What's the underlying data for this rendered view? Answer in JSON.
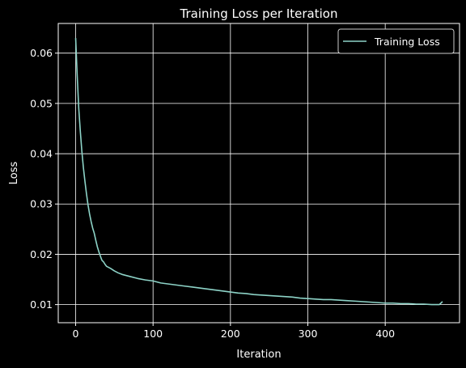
{
  "chart_data": {
    "type": "line",
    "title": "Training Loss per Iteration",
    "xlabel": "Iteration",
    "ylabel": "Loss",
    "xlim": [
      -22.5,
      496
    ],
    "ylim": [
      0.0064,
      0.0659
    ],
    "xticks": [
      0,
      100,
      200,
      300,
      400
    ],
    "xtick_labels": [
      "0",
      "100",
      "200",
      "300",
      "400"
    ],
    "yticks": [
      0.01,
      0.02,
      0.03,
      0.04,
      0.05,
      0.06
    ],
    "ytick_labels": [
      "0.01",
      "0.02",
      "0.03",
      "0.04",
      "0.05",
      "0.06"
    ],
    "grid": true,
    "legend_position": "top-right",
    "colors": {
      "background": "#000000",
      "series": "#8dd3c7",
      "grid": "#ffffff",
      "text": "#ffffff"
    },
    "series": [
      {
        "name": "Training Loss",
        "x": [
          0,
          2,
          4,
          6,
          8,
          10,
          12,
          14,
          16,
          18,
          20,
          22,
          24,
          26,
          28,
          30,
          32,
          34,
          36,
          38,
          40,
          45,
          50,
          55,
          60,
          70,
          80,
          90,
          100,
          110,
          120,
          130,
          140,
          150,
          160,
          170,
          180,
          190,
          200,
          210,
          220,
          230,
          240,
          250,
          260,
          270,
          280,
          290,
          300,
          310,
          320,
          330,
          340,
          350,
          360,
          370,
          380,
          390,
          400,
          410,
          420,
          430,
          440,
          450,
          460,
          470,
          474
        ],
        "y": [
          0.063,
          0.0555,
          0.049,
          0.0445,
          0.0405,
          0.0372,
          0.0345,
          0.032,
          0.0298,
          0.028,
          0.0265,
          0.0252,
          0.0242,
          0.0228,
          0.0215,
          0.0205,
          0.0196,
          0.0188,
          0.0185,
          0.018,
          0.0176,
          0.0172,
          0.0167,
          0.0163,
          0.016,
          0.0156,
          0.0152,
          0.0149,
          0.0147,
          0.0143,
          0.0141,
          0.0139,
          0.0137,
          0.0135,
          0.0133,
          0.0131,
          0.0129,
          0.0127,
          0.0125,
          0.0123,
          0.0122,
          0.012,
          0.0119,
          0.0118,
          0.0117,
          0.0116,
          0.0115,
          0.0113,
          0.0112,
          0.0111,
          0.011,
          0.011,
          0.0109,
          0.0108,
          0.0107,
          0.0106,
          0.0105,
          0.0104,
          0.0103,
          0.0103,
          0.0102,
          0.0102,
          0.0101,
          0.0101,
          0.01,
          0.01,
          0.0106
        ]
      }
    ]
  }
}
